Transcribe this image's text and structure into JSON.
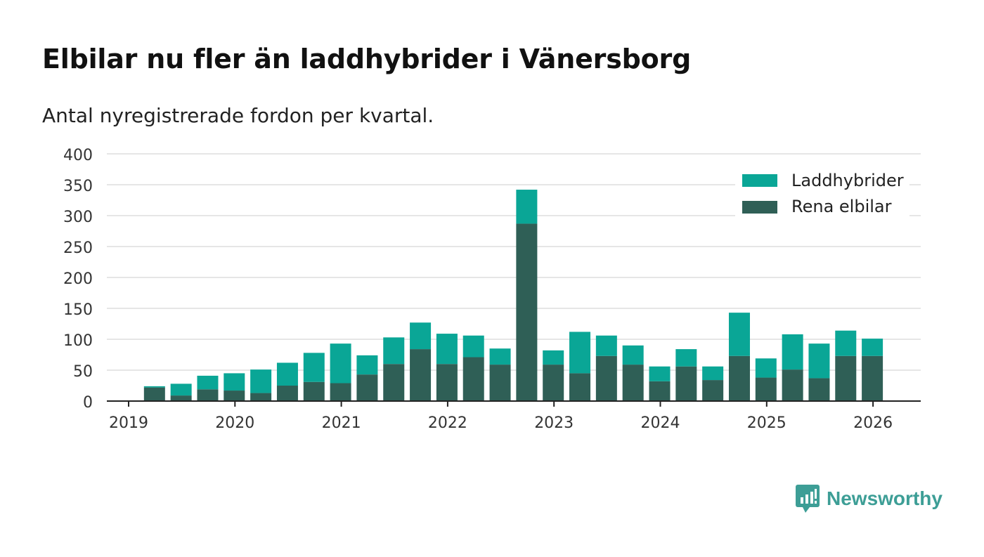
{
  "title": "Elbilar nu fler än laddhybrider i Vänersborg",
  "subtitle": "Antal nyregistrerade fordon per kvartal.",
  "brand": {
    "name": "Newsworthy"
  },
  "colors": {
    "laddhybrider": "#0aa696",
    "rena": "#2f5f56",
    "grid": "#dddddd",
    "axis": "#222222",
    "brand": "#3d9e96"
  },
  "chart_data": {
    "type": "bar",
    "stacked": true,
    "title": "Elbilar nu fler än laddhybrider i Vänersborg",
    "subtitle": "Antal nyregistrerade fordon per kvartal.",
    "xlabel": "",
    "ylabel": "",
    "ylim": [
      0,
      400
    ],
    "yticks": [
      "0",
      "50",
      "100",
      "150",
      "200",
      "250",
      "300",
      "350",
      "400"
    ],
    "xticks": [
      "2019",
      "2020",
      "2021",
      "2022",
      "2023",
      "2024",
      "2025",
      "2026"
    ],
    "grid": true,
    "legend_position": "top-right",
    "categories": [
      "2019 Q2",
      "2019 Q3",
      "2019 Q4",
      "2020 Q1",
      "2020 Q2",
      "2020 Q3",
      "2020 Q4",
      "2021 Q1",
      "2021 Q2",
      "2021 Q3",
      "2021 Q4",
      "2022 Q1",
      "2022 Q2",
      "2022 Q3",
      "2022 Q4",
      "2023 Q1",
      "2023 Q2",
      "2023 Q3",
      "2023 Q4",
      "2024 Q1",
      "2024 Q2",
      "2024 Q3",
      "2024 Q4",
      "2025 Q1",
      "2025 Q2",
      "2025 Q3",
      "2025 Q4",
      "2026 Q1"
    ],
    "series": [
      {
        "name": "Rena elbilar",
        "values": [
          22,
          9,
          19,
          17,
          13,
          25,
          31,
          29,
          43,
          60,
          84,
          60,
          71,
          59,
          287,
          59,
          45,
          73,
          59,
          32,
          56,
          34,
          73,
          38,
          51,
          37,
          73,
          73
        ]
      },
      {
        "name": "Laddhybrider",
        "values": [
          2,
          19,
          22,
          28,
          38,
          37,
          47,
          64,
          31,
          43,
          43,
          49,
          35,
          26,
          55,
          23,
          67,
          33,
          31,
          24,
          28,
          22,
          70,
          31,
          57,
          56,
          41,
          28
        ]
      }
    ]
  }
}
